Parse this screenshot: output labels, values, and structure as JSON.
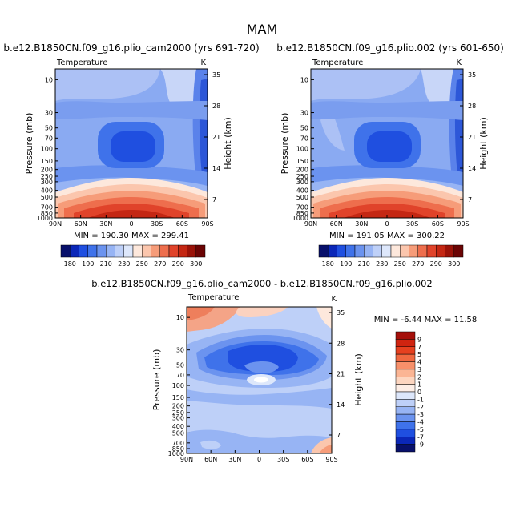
{
  "figure": {
    "title": "MAM"
  },
  "chart_data": [
    {
      "type": "heatmap",
      "title": "b.e12.B1850CN.f09_g16.plio_cam2000 (yrs 691-720)",
      "variable": "Temperature",
      "units": "K",
      "xlabel": "",
      "ylabel": "Pressure (mb)",
      "y2label": "Height (km)",
      "xticks": [
        "90N",
        "60N",
        "30N",
        "0",
        "30S",
        "60S",
        "90S"
      ],
      "yticks": [
        "10",
        "30",
        "50",
        "70",
        "100",
        "150",
        "200",
        "250",
        "300",
        "400",
        "500",
        "700",
        "850",
        "1000"
      ],
      "y2ticks": [
        "35",
        "28",
        "21",
        "14",
        "7"
      ],
      "stats": "MIN = 190.30   MAX = 299.41",
      "min": 190.3,
      "max": 299.41,
      "colorbar": {
        "orientation": "horizontal",
        "levels": [
          "180",
          "190",
          "210",
          "230",
          "250",
          "270",
          "290",
          "300"
        ],
        "colors": [
          "#08106b",
          "#0b27b8",
          "#1f4fe0",
          "#3f72ea",
          "#6b93ef",
          "#97b4f4",
          "#bed0f8",
          "#dde7fb",
          "#fde8dc",
          "#fbc6ad",
          "#f69c79",
          "#ee6e4d",
          "#e0432a",
          "#c42713",
          "#9a1208",
          "#6b0404"
        ]
      }
    },
    {
      "type": "heatmap",
      "title": "b.e12.B1850CN.f09_g16.plio.002 (yrs 601-650)",
      "variable": "Temperature",
      "units": "K",
      "xlabel": "",
      "ylabel": "Pressure (mb)",
      "y2label": "Height (km)",
      "xticks": [
        "90N",
        "60N",
        "30N",
        "0",
        "30S",
        "60S",
        "90S"
      ],
      "yticks": [
        "10",
        "30",
        "50",
        "70",
        "100",
        "150",
        "200",
        "250",
        "300",
        "400",
        "500",
        "700",
        "850",
        "1000"
      ],
      "y2ticks": [
        "35",
        "28",
        "21",
        "14",
        "7"
      ],
      "stats": "MIN = 191.05   MAX = 300.22",
      "min": 191.05,
      "max": 300.22,
      "colorbar": {
        "orientation": "horizontal",
        "levels": [
          "180",
          "190",
          "210",
          "230",
          "250",
          "270",
          "290",
          "300"
        ],
        "colors": [
          "#08106b",
          "#0b27b8",
          "#1f4fe0",
          "#3f72ea",
          "#6b93ef",
          "#97b4f4",
          "#bed0f8",
          "#dde7fb",
          "#fde8dc",
          "#fbc6ad",
          "#f69c79",
          "#ee6e4d",
          "#e0432a",
          "#c42713",
          "#9a1208",
          "#6b0404"
        ]
      }
    },
    {
      "type": "heatmap",
      "title": "b.e12.B1850CN.f09_g16.plio_cam2000 - b.e12.B1850CN.f09_g16.plio.002",
      "variable": "Temperature",
      "units": "K",
      "xlabel": "",
      "ylabel": "Pressure (mb)",
      "y2label": "Height (km)",
      "xticks": [
        "90N",
        "60N",
        "30N",
        "0",
        "30S",
        "60S",
        "90S"
      ],
      "yticks": [
        "10",
        "30",
        "50",
        "70",
        "100",
        "150",
        "200",
        "250",
        "300",
        "400",
        "500",
        "700",
        "850",
        "1000"
      ],
      "y2ticks": [
        "35",
        "28",
        "21",
        "14",
        "7"
      ],
      "stats": "MIN =  -6.44   MAX =  11.58",
      "min": -6.44,
      "max": 11.58,
      "colorbar": {
        "orientation": "vertical",
        "levels": [
          "9",
          "7",
          "5",
          "4",
          "3",
          "2",
          "1",
          "0",
          "-1",
          "-2",
          "-3",
          "-4",
          "-5",
          "-7",
          "-9"
        ],
        "colors": [
          "#a50f0a",
          "#d02410",
          "#e6401f",
          "#f06840",
          "#f7906a",
          "#fbb594",
          "#fdd6c0",
          "#fdeee6",
          "#dde7fb",
          "#bed0f8",
          "#97b4f4",
          "#6b93ef",
          "#3f72ea",
          "#1f4fe0",
          "#0b27b8",
          "#08106b"
        ]
      }
    }
  ]
}
